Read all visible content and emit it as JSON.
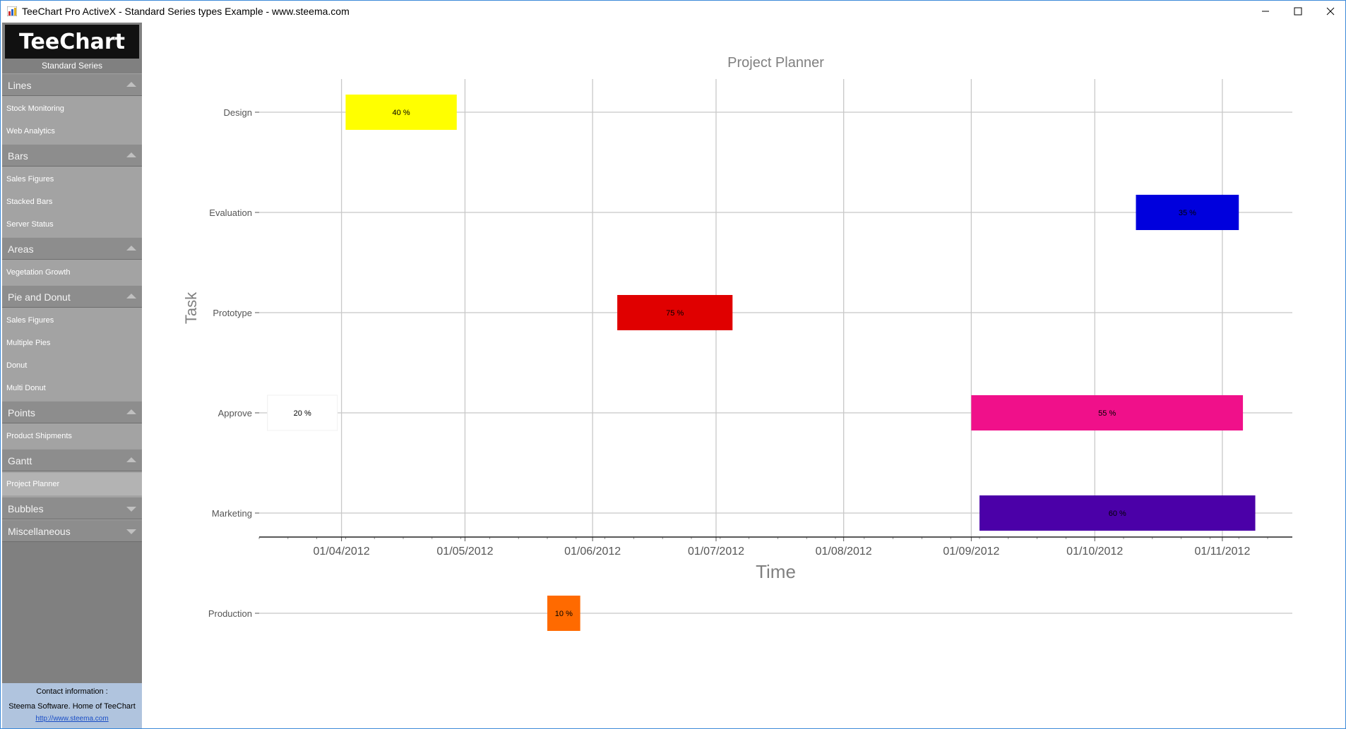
{
  "window": {
    "title": "TeeChart Pro ActiveX - Standard Series types Example - www.steema.com",
    "icons": [
      "minimize-icon",
      "maximize-icon",
      "close-icon"
    ]
  },
  "sidebar": {
    "logo_text": "TeeChart",
    "subtitle": "Standard Series",
    "categories": [
      {
        "label": "Lines",
        "expanded": true,
        "items": [
          "Stock Monitoring",
          "Web Analytics"
        ]
      },
      {
        "label": "Bars",
        "expanded": true,
        "items": [
          "Sales Figures",
          "Stacked Bars",
          "Server Status"
        ]
      },
      {
        "label": "Areas",
        "expanded": true,
        "items": [
          "Vegetation Growth"
        ]
      },
      {
        "label": "Pie and Donut",
        "expanded": true,
        "items": [
          "Sales Figures",
          "Multiple Pies",
          "Donut",
          "Multi Donut"
        ]
      },
      {
        "label": "Points",
        "expanded": true,
        "items": [
          "Product Shipments"
        ]
      },
      {
        "label": "Gantt",
        "expanded": true,
        "items": [
          "Project Planner"
        ]
      },
      {
        "label": "Bubbles",
        "expanded": false,
        "items": []
      },
      {
        "label": "Miscellaneous",
        "expanded": false,
        "items": []
      }
    ],
    "selected_item": "Project Planner",
    "contact": {
      "line1": "Contact information :",
      "line2": "Steema Software. Home of TeeChart",
      "link": "http://www.steema.com"
    }
  },
  "chart_data": {
    "type": "gantt",
    "title": "Project Planner",
    "xlabel": "Time",
    "ylabel": "Task",
    "grid": true,
    "x_ticks": [
      "01/04/2012",
      "01/05/2012",
      "01/06/2012",
      "01/07/2012",
      "01/08/2012",
      "01/09/2012",
      "01/10/2012",
      "01/11/2012"
    ],
    "xlim": [
      "2012-03-12",
      "2012-11-18"
    ],
    "tasks": [
      {
        "name": "Design",
        "start": "2012-04-02",
        "end": "2012-04-29",
        "label": "40 %",
        "color": "#ffff00"
      },
      {
        "name": "Evaluation",
        "start": "2012-10-11",
        "end": "2012-11-05",
        "label": "35 %",
        "color": "#0000dd"
      },
      {
        "name": "Prototype",
        "start": "2012-06-07",
        "end": "2012-07-05",
        "label": "75 %",
        "color": "#e00000"
      },
      {
        "name": "Approve",
        "start": "2012-03-14",
        "end": "2012-03-31",
        "label": "20 %",
        "color": "#ffffff"
      },
      {
        "name": "Marketing",
        "start": "2012-09-03",
        "end": "2012-11-09",
        "label": "60 %",
        "color": "#4b00a8"
      },
      {
        "name": "Production",
        "start": "2012-05-21",
        "end": "2012-05-29",
        "label": "10 %",
        "color": "#ff6a00"
      },
      {
        "name": "Approve",
        "start": "2012-09-01",
        "end": "2012-11-06",
        "label": "55 %",
        "color": "#f0108a"
      }
    ],
    "categories": [
      "Design",
      "Evaluation",
      "Prototype",
      "Approve",
      "Marketing",
      "Production"
    ]
  }
}
